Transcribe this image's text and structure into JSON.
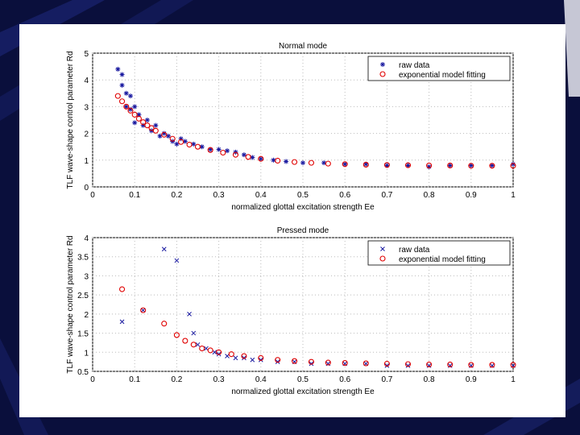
{
  "colors": {
    "background": "#0a0f3c",
    "panel": "#ffffff",
    "raw": "#1a1aa0",
    "fit": "#e00000"
  },
  "chart_data": [
    {
      "type": "scatter",
      "title": "Normal mode",
      "xlabel": "normalized glottal excitation strength Ee",
      "ylabel": "TLF wave-shape control parameter Rd",
      "xlim": [
        0,
        1
      ],
      "ylim": [
        0,
        5
      ],
      "xticks": [
        "0",
        "0.1",
        "0.2",
        "0.3",
        "0.4",
        "0.5",
        "0.6",
        "0.7",
        "0.8",
        "0.9",
        "1"
      ],
      "yticks": [
        "0",
        "1",
        "2",
        "3",
        "4",
        "5"
      ],
      "legend": {
        "position": "top-right",
        "entries": [
          "raw data",
          "exponential model fitting"
        ]
      },
      "series": [
        {
          "name": "raw data",
          "marker": "*",
          "x": [
            0.06,
            0.07,
            0.07,
            0.08,
            0.08,
            0.09,
            0.09,
            0.1,
            0.1,
            0.11,
            0.12,
            0.13,
            0.14,
            0.15,
            0.16,
            0.17,
            0.18,
            0.19,
            0.2,
            0.21,
            0.22,
            0.24,
            0.26,
            0.28,
            0.3,
            0.32,
            0.34,
            0.36,
            0.38,
            0.4,
            0.43,
            0.46,
            0.5,
            0.55,
            0.6,
            0.65,
            0.7,
            0.75,
            0.8,
            0.85,
            0.9,
            0.95,
            1.0
          ],
          "y": [
            4.4,
            4.2,
            3.8,
            3.5,
            3.0,
            3.4,
            2.9,
            3.0,
            2.4,
            2.7,
            2.3,
            2.5,
            2.1,
            2.3,
            1.9,
            2.0,
            1.9,
            1.7,
            1.6,
            1.8,
            1.7,
            1.6,
            1.5,
            1.4,
            1.4,
            1.35,
            1.3,
            1.2,
            1.1,
            1.05,
            1.0,
            0.95,
            0.9,
            0.9,
            0.85,
            0.85,
            0.8,
            0.8,
            0.75,
            0.8,
            0.8,
            0.8,
            0.85
          ]
        },
        {
          "name": "exponential model fitting",
          "marker": "o",
          "x": [
            0.06,
            0.07,
            0.08,
            0.09,
            0.1,
            0.11,
            0.12,
            0.13,
            0.14,
            0.15,
            0.17,
            0.19,
            0.21,
            0.23,
            0.25,
            0.28,
            0.31,
            0.34,
            0.37,
            0.4,
            0.44,
            0.48,
            0.52,
            0.56,
            0.6,
            0.65,
            0.7,
            0.75,
            0.8,
            0.85,
            0.9,
            0.95,
            1.0
          ],
          "y": [
            3.4,
            3.2,
            3.0,
            2.85,
            2.7,
            2.55,
            2.42,
            2.3,
            2.2,
            2.1,
            1.95,
            1.8,
            1.68,
            1.58,
            1.5,
            1.38,
            1.28,
            1.2,
            1.12,
            1.05,
            0.98,
            0.93,
            0.9,
            0.87,
            0.85,
            0.83,
            0.82,
            0.81,
            0.8,
            0.8,
            0.79,
            0.79,
            0.79
          ]
        }
      ]
    },
    {
      "type": "scatter",
      "title": "Pressed mode",
      "xlabel": "normalized glottal excitation strength Ee",
      "ylabel": "TLF wave-shape control parameter Rd",
      "xlim": [
        0,
        1
      ],
      "ylim": [
        0.5,
        4
      ],
      "xticks": [
        "0",
        "0.1",
        "0.2",
        "0.3",
        "0.4",
        "0.5",
        "0.6",
        "0.7",
        "0.8",
        "0.9",
        "1"
      ],
      "yticks": [
        "0.5",
        "1",
        "1.5",
        "2",
        "2.5",
        "3",
        "3.5",
        "4"
      ],
      "legend": {
        "position": "top-right",
        "entries": [
          "raw data",
          "exponential model fitting"
        ]
      },
      "series": [
        {
          "name": "raw data",
          "marker": "x",
          "x": [
            0.07,
            0.12,
            0.17,
            0.2,
            0.23,
            0.24,
            0.25,
            0.27,
            0.29,
            0.3,
            0.32,
            0.34,
            0.36,
            0.38,
            0.4,
            0.44,
            0.48,
            0.52,
            0.56,
            0.6,
            0.65,
            0.7,
            0.75,
            0.8,
            0.85,
            0.9,
            0.95,
            1.0
          ],
          "y": [
            1.8,
            2.1,
            3.7,
            3.4,
            2.0,
            1.5,
            1.2,
            1.1,
            1.0,
            0.95,
            0.9,
            0.85,
            0.85,
            0.8,
            0.8,
            0.75,
            0.75,
            0.7,
            0.7,
            0.7,
            0.7,
            0.65,
            0.65,
            0.65,
            0.65,
            0.65,
            0.65,
            0.65
          ]
        },
        {
          "name": "exponential model fitting",
          "marker": "o",
          "x": [
            0.07,
            0.12,
            0.17,
            0.2,
            0.22,
            0.24,
            0.26,
            0.28,
            0.3,
            0.33,
            0.36,
            0.4,
            0.44,
            0.48,
            0.52,
            0.56,
            0.6,
            0.65,
            0.7,
            0.75,
            0.8,
            0.85,
            0.9,
            0.95,
            1.0
          ],
          "y": [
            2.65,
            2.1,
            1.75,
            1.45,
            1.3,
            1.2,
            1.1,
            1.05,
            1.0,
            0.95,
            0.9,
            0.85,
            0.8,
            0.77,
            0.75,
            0.73,
            0.72,
            0.71,
            0.7,
            0.69,
            0.68,
            0.68,
            0.67,
            0.67,
            0.67
          ]
        }
      ]
    }
  ]
}
